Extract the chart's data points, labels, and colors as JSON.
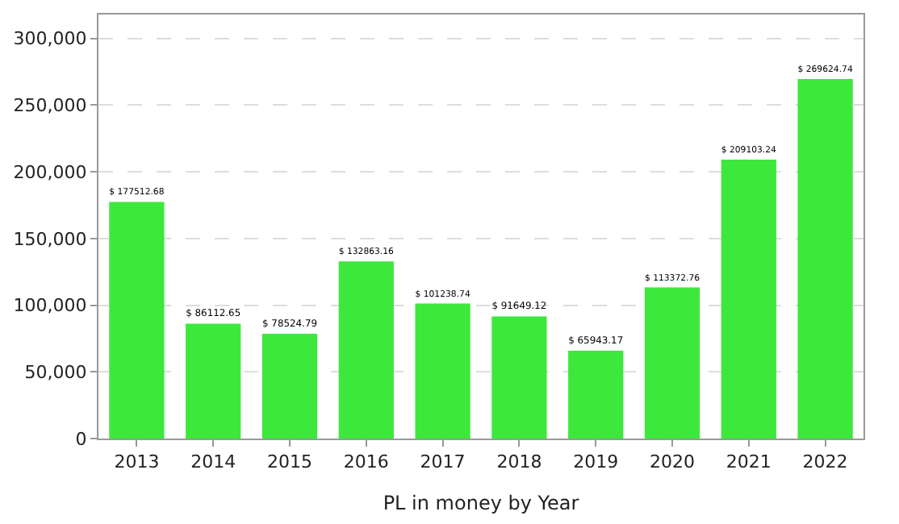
{
  "chart_data": {
    "type": "bar",
    "xlabel": "PL in money by Year",
    "categories": [
      "2013",
      "2014",
      "2015",
      "2016",
      "2017",
      "2018",
      "2019",
      "2020",
      "2021",
      "2022"
    ],
    "values": [
      177512.68,
      86112.65,
      78524.79,
      132863.16,
      101238.74,
      91649.12,
      65943.17,
      113372.76,
      209103.24,
      269624.74
    ],
    "value_labels": [
      "$ 177512.68",
      "$ 86112.65",
      "$ 78524.79",
      "$ 132863.16",
      "$ 101238.74",
      "$ 91649.12",
      "$ 65943.17",
      "$ 113372.76",
      "$ 209103.24",
      "$ 269624.74"
    ],
    "color": "#3ce83c",
    "ylim": [
      0,
      318000
    ],
    "yticks": [
      {
        "value": 0,
        "label": "0"
      },
      {
        "value": 50000,
        "label": "50,000"
      },
      {
        "value": 100000,
        "label": "100,000"
      },
      {
        "value": 150000,
        "label": "150,000"
      },
      {
        "value": 200000,
        "label": "200,000"
      },
      {
        "value": 250000,
        "label": "250,000"
      },
      {
        "value": 300000,
        "label": "300,000"
      }
    ],
    "grid": "y"
  }
}
